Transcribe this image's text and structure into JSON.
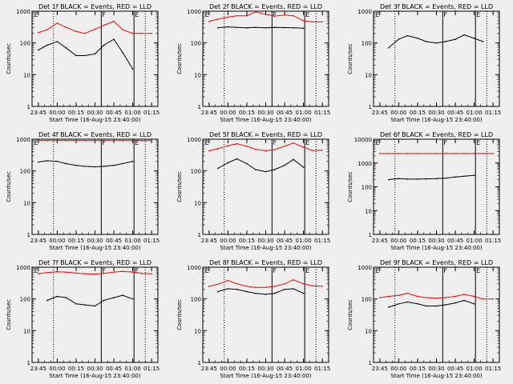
{
  "chart_data": [
    {
      "type": "line",
      "title": "Det 1f BLACK = Events, RED = LLD",
      "ylabel": "Counts/sec",
      "xlabel": "Start Time (16-Aug-15 23:40:00)",
      "yscale": "log",
      "ylim": [
        1,
        1000
      ],
      "x": [
        "23:45",
        "23:52",
        "00:00",
        "00:07",
        "00:15",
        "00:22",
        "00:30",
        "00:37",
        "00:45",
        "00:52",
        "01:00",
        "01:07",
        "01:15"
      ],
      "series": [
        {
          "color": "#ff0000",
          "values": [
            210,
            260,
            420,
            310,
            230,
            200,
            270,
            360,
            480,
            260,
            200,
            200,
            200
          ]
        },
        {
          "color": "#000000",
          "values": [
            60,
            85,
            110,
            70,
            40,
            40,
            45,
            85,
            130,
            50,
            15,
            null,
            null
          ]
        }
      ]
    },
    {
      "type": "line",
      "title": "Det 2f BLACK = Events, RED = LLD",
      "ylabel": "Counts/sec",
      "xlabel": "Start Time (16-Aug-15 23:40:00)",
      "yscale": "log",
      "ylim": [
        1,
        1000
      ],
      "x": [
        "23:45",
        "23:52",
        "00:00",
        "00:07",
        "00:15",
        "00:22",
        "00:30",
        "00:37",
        "00:45",
        "00:52",
        "01:00",
        "01:07",
        "01:15"
      ],
      "series": [
        {
          "color": "#ff0000",
          "values": [
            480,
            560,
            650,
            720,
            720,
            950,
            800,
            700,
            760,
            720,
            500,
            460,
            460
          ]
        },
        {
          "color": "#000000",
          "values": [
            null,
            300,
            320,
            310,
            300,
            310,
            300,
            310,
            305,
            300,
            290,
            null,
            null
          ]
        }
      ]
    },
    {
      "type": "line",
      "title": "Det 3f BLACK = Events, RED = LLD",
      "ylabel": "Counts/sec",
      "xlabel": "Start Time (16-Aug-15 23:40:00)",
      "yscale": "log",
      "ylim": [
        1,
        1000
      ],
      "x": [
        "23:45",
        "23:52",
        "00:00",
        "00:07",
        "00:15",
        "00:22",
        "00:30",
        "00:37",
        "00:45",
        "00:52",
        "01:00",
        "01:07",
        "01:15"
      ],
      "series": [
        {
          "color": "#000000",
          "values": [
            null,
            70,
            130,
            170,
            140,
            110,
            100,
            110,
            130,
            180,
            140,
            110,
            null
          ]
        }
      ]
    },
    {
      "type": "line",
      "title": "Det 4f BLACK = Events, RED = LLD",
      "ylabel": "Counts/sec",
      "xlabel": "Start Time (16-Aug-15 23:40:00)",
      "yscale": "log",
      "ylim": [
        1,
        1000
      ],
      "x": [
        "23:45",
        "23:52",
        "00:00",
        "00:07",
        "00:15",
        "00:22",
        "00:30",
        "00:37",
        "00:45",
        "00:52",
        "01:00",
        "01:07",
        "01:15"
      ],
      "series": [
        {
          "color": "#ff0000",
          "values": [
            900,
            900,
            900,
            900,
            900,
            900,
            900,
            900,
            900,
            900,
            900,
            900,
            900
          ]
        },
        {
          "color": "#000000",
          "values": [
            190,
            210,
            200,
            170,
            150,
            140,
            135,
            140,
            150,
            170,
            200,
            null,
            null
          ]
        }
      ]
    },
    {
      "type": "line",
      "title": "Det 5f BLACK = Events, RED = LLD",
      "ylabel": "Counts/sec",
      "xlabel": "Start Time (16-Aug-15 23:40:00)",
      "yscale": "log",
      "ylim": [
        1,
        1000
      ],
      "x": [
        "23:45",
        "23:52",
        "00:00",
        "00:07",
        "00:15",
        "00:22",
        "00:30",
        "00:37",
        "00:45",
        "00:52",
        "01:00",
        "01:07",
        "01:15"
      ],
      "series": [
        {
          "color": "#ff0000",
          "values": [
            430,
            500,
            620,
            720,
            600,
            480,
            430,
            470,
            600,
            760,
            560,
            440,
            450
          ]
        },
        {
          "color": "#000000",
          "values": [
            null,
            120,
            180,
            240,
            170,
            110,
            95,
            110,
            150,
            230,
            130,
            null,
            null
          ]
        }
      ]
    },
    {
      "type": "line",
      "title": "Det 6f BLACK = Events, RED = LLD",
      "ylabel": "Counts/sec",
      "xlabel": "Start Time (16-Aug-15 23:40:00)",
      "yscale": "log",
      "ylim": [
        1,
        10000
      ],
      "x": [
        "23:45",
        "23:52",
        "00:00",
        "00:07",
        "00:15",
        "00:22",
        "00:30",
        "00:37",
        "00:45",
        "00:52",
        "01:00",
        "01:07",
        "01:15"
      ],
      "series": [
        {
          "color": "#ff0000",
          "values": [
            2500,
            2500,
            2500,
            2500,
            2500,
            2500,
            2500,
            2500,
            2500,
            2500,
            2500,
            2500,
            2500
          ]
        },
        {
          "color": "#000000",
          "values": [
            null,
            200,
            220,
            210,
            210,
            215,
            220,
            230,
            260,
            280,
            300,
            null,
            null
          ]
        }
      ]
    },
    {
      "type": "line",
      "title": "Det 7f BLACK = Events, RED = LLD",
      "ylabel": "Counts/sec",
      "xlabel": "Start Time (16-Aug-15 23:40:00)",
      "yscale": "log",
      "ylim": [
        1,
        1000
      ],
      "x": [
        "23:45",
        "23:52",
        "00:00",
        "00:07",
        "00:15",
        "00:22",
        "00:30",
        "00:37",
        "00:45",
        "00:52",
        "01:00",
        "01:07",
        "01:15"
      ],
      "series": [
        {
          "color": "#ff0000",
          "values": [
            620,
            680,
            720,
            700,
            650,
            620,
            600,
            640,
            700,
            740,
            700,
            640,
            620
          ]
        },
        {
          "color": "#000000",
          "values": [
            null,
            90,
            120,
            110,
            70,
            65,
            60,
            90,
            110,
            130,
            100,
            null,
            null
          ]
        }
      ]
    },
    {
      "type": "line",
      "title": "Det 8f BLACK = Events, RED = LLD",
      "ylabel": "Counts/sec",
      "xlabel": "Start Time (16-Aug-15 23:40:00)",
      "yscale": "log",
      "ylim": [
        1,
        1000
      ],
      "x": [
        "23:45",
        "23:52",
        "00:00",
        "00:07",
        "00:15",
        "00:22",
        "00:30",
        "00:37",
        "00:45",
        "00:52",
        "01:00",
        "01:07",
        "01:15"
      ],
      "series": [
        {
          "color": "#ff0000",
          "values": [
            250,
            290,
            380,
            300,
            250,
            230,
            230,
            250,
            300,
            400,
            300,
            260,
            250
          ]
        },
        {
          "color": "#000000",
          "values": [
            null,
            170,
            210,
            200,
            170,
            150,
            140,
            150,
            200,
            210,
            150,
            null,
            null
          ]
        }
      ]
    },
    {
      "type": "line",
      "title": "Det 9f BLACK = Events, RED = LLD",
      "ylabel": "Counts/sec",
      "xlabel": "Start Time (16-Aug-15 23:40:00)",
      "yscale": "log",
      "ylim": [
        1,
        1000
      ],
      "x": [
        "23:45",
        "23:52",
        "00:00",
        "00:07",
        "00:15",
        "00:22",
        "00:30",
        "00:37",
        "00:45",
        "00:52",
        "01:00",
        "01:07",
        "01:15"
      ],
      "series": [
        {
          "color": "#ff0000",
          "values": [
            110,
            120,
            130,
            150,
            120,
            110,
            105,
            110,
            120,
            140,
            120,
            100,
            100
          ]
        },
        {
          "color": "#000000",
          "values": [
            null,
            55,
            70,
            80,
            70,
            60,
            60,
            65,
            75,
            90,
            70,
            null,
            null
          ]
        }
      ]
    }
  ],
  "tick_labels": [
    "23:45",
    "00:00",
    "00:15",
    "00:30",
    "00:45",
    "01:00",
    "01:15"
  ],
  "markers": [
    "E",
    "F",
    "E"
  ]
}
